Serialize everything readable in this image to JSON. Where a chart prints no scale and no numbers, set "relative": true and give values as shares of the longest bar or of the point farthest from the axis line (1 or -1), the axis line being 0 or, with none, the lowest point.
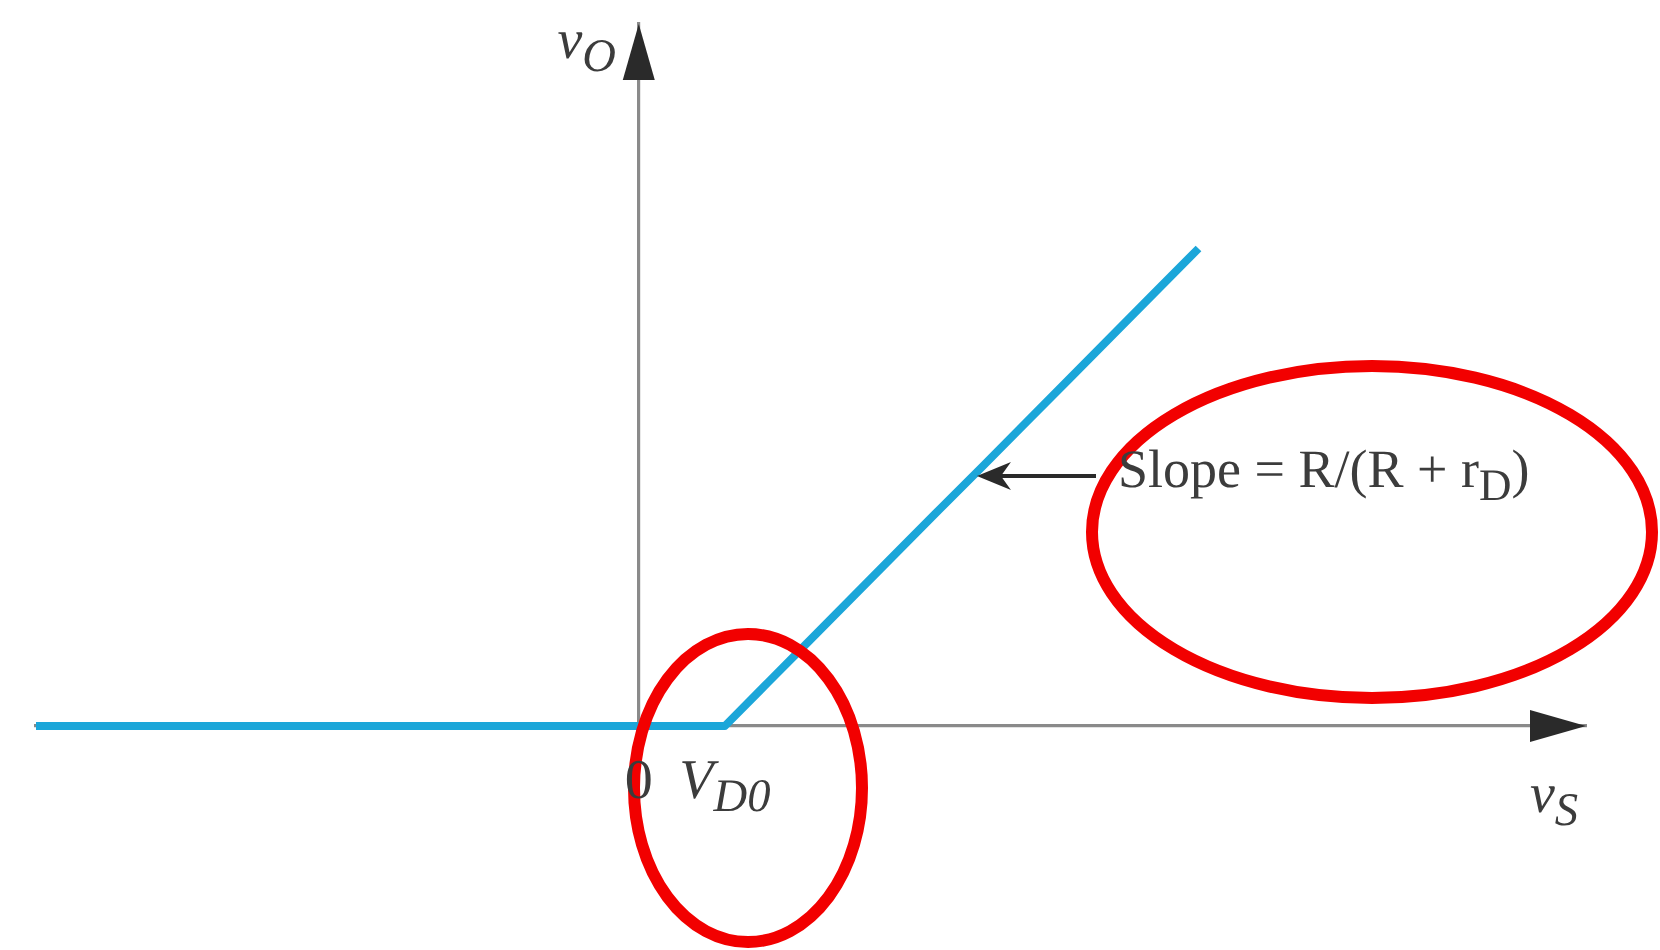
{
  "chart_data": {
    "type": "line",
    "xlabel": "v$_{S}$",
    "ylabel": "v$_{O}$",
    "categories": [
      null,
      null,
      null,
      null,
      null,
      null,
      null,
      null,
      null,
      null,
      null,
      null,
      null,
      null,
      "0",
      null,
      "V$_{D0}$",
      null,
      null,
      null,
      null,
      null,
      null,
      null,
      null,
      null,
      null,
      null,
      null,
      null,
      null,
      null,
      null,
      null,
      null,
      null,
      null
    ],
    "values": [
      0,
      0,
      0,
      0,
      0,
      0,
      0,
      0,
      0,
      0,
      0,
      0,
      0,
      0,
      0,
      0,
      0,
      0.091,
      0.182,
      0.273,
      0.364,
      0.455,
      0.545,
      0.636,
      0.727,
      0.818,
      0.909,
      1,
      null,
      null,
      null,
      null,
      null,
      null,
      null,
      null,
      null
    ],
    "color": "#1ba6d9",
    "relative": true,
    "tick_labels": "x",
    "legend": false,
    "marker": "none",
    "line_style": "solid",
    "annotations": [
      "Slope = R/(R + r$_{D}$)"
    ]
  }
}
